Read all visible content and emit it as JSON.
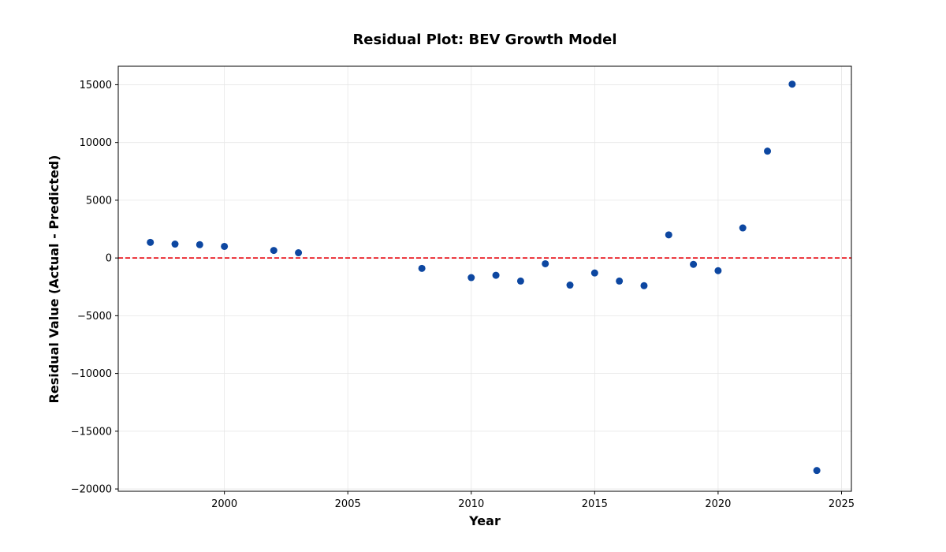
{
  "chart_data": {
    "type": "scatter",
    "title": "Residual Plot: BEV Growth Model",
    "xlabel": "Year",
    "ylabel": "Residual Value (Actual - Predicted)",
    "xlim": [
      1995.7,
      2025.4
    ],
    "ylim": [
      -20200,
      16600
    ],
    "xticks": [
      2000,
      2005,
      2010,
      2015,
      2020,
      2025
    ],
    "yticks": [
      -20000,
      -15000,
      -10000,
      -5000,
      0,
      5000,
      10000,
      15000
    ],
    "grid": true,
    "reference_line": {
      "y": 0,
      "color": "#e8141c",
      "style": "dashed"
    },
    "point_color": "#0d47a1",
    "x": [
      1997,
      1998,
      1999,
      2000,
      2002,
      2003,
      2008,
      2010,
      2011,
      2012,
      2013,
      2014,
      2015,
      2016,
      2017,
      2018,
      2019,
      2020,
      2021,
      2022,
      2023,
      2024
    ],
    "y": [
      1350,
      1200,
      1150,
      1000,
      650,
      450,
      -900,
      -1700,
      -1500,
      -2000,
      -500,
      -2350,
      -1300,
      -2000,
      -2400,
      2000,
      -550,
      -1100,
      2600,
      9250,
      15050,
      -18400
    ]
  }
}
